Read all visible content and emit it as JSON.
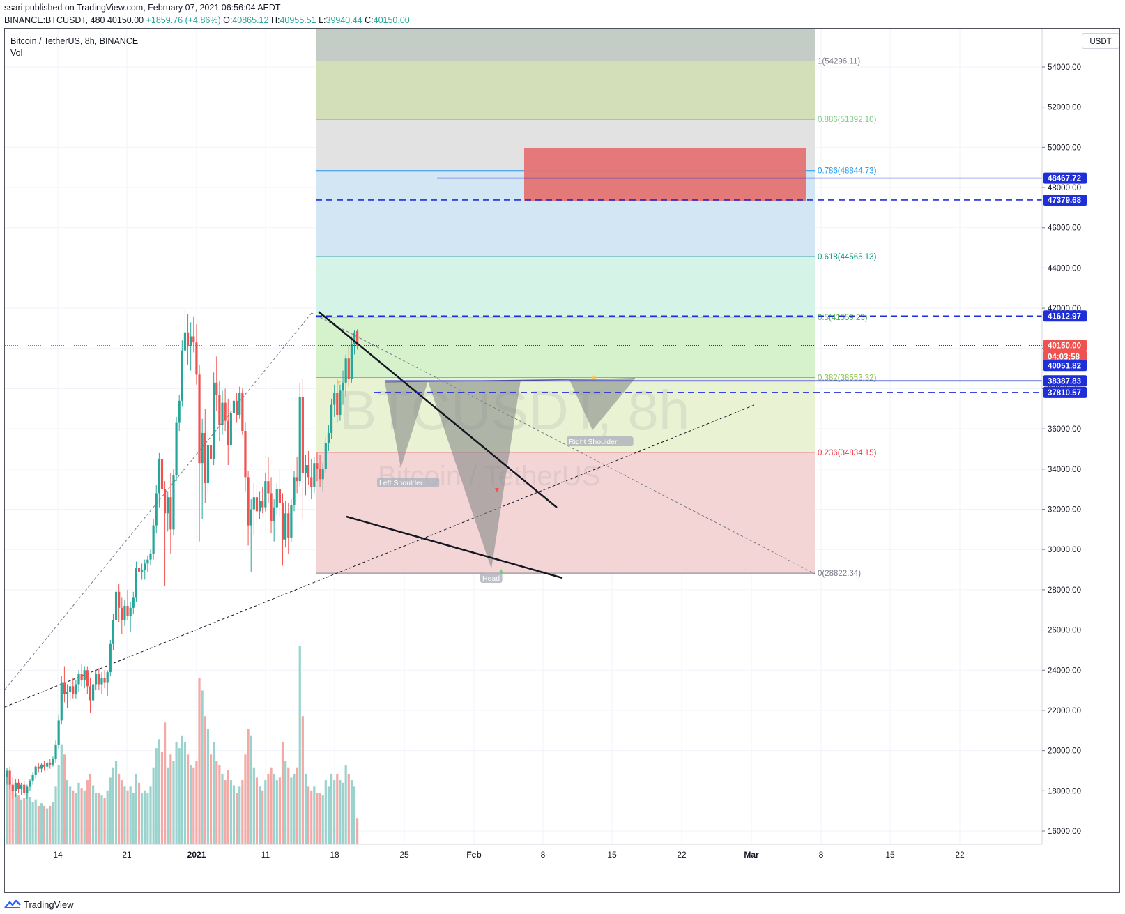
{
  "publish_info": "ssari published on TradingView.com, February 07, 2021 06:56:04 AEDT",
  "ohlc_bar": {
    "symbol_text": "BINANCE:BTCUSDT, 480",
    "last": "40150.00",
    "change": "+1859.76 (+4.86%)",
    "o_label": "O:",
    "o": "40865.12",
    "h_label": "H:",
    "h": "40955.51",
    "l_label": "L:",
    "l": "39940.44",
    "c_label": "C:",
    "c": "40150.00"
  },
  "legend": {
    "title": "Bitcoin / TetherUS, 8h, BINANCE",
    "vol": "Vol"
  },
  "currency_button": "USDT",
  "watermark": {
    "line1": "BTCUSDT, 8h",
    "line2": "Bitcoin / TetherUS"
  },
  "footer": {
    "brand": "TradingView"
  },
  "colors": {
    "up": "#26a69a",
    "down": "#ef5350",
    "vol_up": "#9ad3cd",
    "vol_down": "#f4a9a7",
    "level_blue": "#1e2ed8",
    "last_price": "#ef5350"
  },
  "chart_data": {
    "type": "candlestick",
    "y_axis_ticks": [
      "16000.00",
      "18000.00",
      "20000.00",
      "22000.00",
      "24000.00",
      "26000.00",
      "28000.00",
      "30000.00",
      "32000.00",
      "34000.00",
      "36000.00",
      "38000.00",
      "40000.00",
      "42000.00",
      "44000.00",
      "46000.00",
      "48000.00",
      "50000.00",
      "52000.00",
      "54000.00"
    ],
    "x_axis_ticks": [
      "14",
      "21",
      "2021",
      "11",
      "18",
      "25",
      "Feb",
      "8",
      "15",
      "22",
      "Mar",
      "8",
      "15",
      "22"
    ],
    "ylim": [
      15600,
      56800
    ],
    "fib_levels": [
      {
        "ratio": 1,
        "label": "1(54296.11)",
        "value": 54296.11,
        "color": "#787b86"
      },
      {
        "ratio": 0.886,
        "label": "0.886(51392.10)",
        "value": 51392.1,
        "color": "#81c784"
      },
      {
        "ratio": 0.786,
        "label": "0.786(48844.73)",
        "value": 48844.73,
        "color": "#2196f3"
      },
      {
        "ratio": 0.618,
        "label": "0.618(44565.13)",
        "value": 44565.13,
        "color": "#089981"
      },
      {
        "ratio": 0.5,
        "label": "0.5(41559.23)",
        "value": 41559.23,
        "color": "#4caf50"
      },
      {
        "ratio": 0.382,
        "label": "0.382(38553.32)",
        "value": 38553.32,
        "color": "#8bc34a"
      },
      {
        "ratio": 0.236,
        "label": "0.236(34834.15)",
        "value": 34834.15,
        "color": "#f23645"
      },
      {
        "ratio": 0,
        "label": "0(28822.34)",
        "value": 28822.34,
        "color": "#787b86"
      }
    ],
    "price_labels": [
      {
        "label": "48467.72",
        "value": 48467.72,
        "kind": "level"
      },
      {
        "label": "47379.68",
        "value": 47379.68,
        "kind": "level"
      },
      {
        "label": "41612.97",
        "value": 41612.97,
        "kind": "level"
      },
      {
        "label": "40150.00",
        "value": 40150.0,
        "kind": "last"
      },
      {
        "label": "04:03:58",
        "value": 39600,
        "kind": "countdown"
      },
      {
        "label": "40051.82",
        "value": 39150,
        "kind": "level"
      },
      {
        "label": "38387.83",
        "value": 38387.83,
        "kind": "level"
      },
      {
        "label": "37810.57",
        "value": 37810.57,
        "kind": "level"
      }
    ],
    "pattern_labels": [
      "Left Shoulder",
      "Head",
      "Right Shoulder"
    ],
    "candles": [
      {
        "o": 18700,
        "h": 19150,
        "l": 18300,
        "c": 19000,
        "v": 0.55
      },
      {
        "o": 19000,
        "h": 19200,
        "l": 18100,
        "c": 18300,
        "v": 0.48
      },
      {
        "o": 18300,
        "h": 18700,
        "l": 17600,
        "c": 18000,
        "v": 0.45
      },
      {
        "o": 18000,
        "h": 18600,
        "l": 17700,
        "c": 18400,
        "v": 0.4
      },
      {
        "o": 18400,
        "h": 18600,
        "l": 17900,
        "c": 18100,
        "v": 0.38
      },
      {
        "o": 18100,
        "h": 18400,
        "l": 17800,
        "c": 18300,
        "v": 0.35
      },
      {
        "o": 18300,
        "h": 18500,
        "l": 17800,
        "c": 17900,
        "v": 0.36
      },
      {
        "o": 17900,
        "h": 18300,
        "l": 17600,
        "c": 18200,
        "v": 0.4
      },
      {
        "o": 18200,
        "h": 18600,
        "l": 18000,
        "c": 18500,
        "v": 0.37
      },
      {
        "o": 18500,
        "h": 18900,
        "l": 18300,
        "c": 18800,
        "v": 0.33
      },
      {
        "o": 18800,
        "h": 19300,
        "l": 18600,
        "c": 19200,
        "v": 0.35
      },
      {
        "o": 19200,
        "h": 19400,
        "l": 18900,
        "c": 19100,
        "v": 0.3
      },
      {
        "o": 19100,
        "h": 19400,
        "l": 18900,
        "c": 19300,
        "v": 0.32
      },
      {
        "o": 19300,
        "h": 19500,
        "l": 19000,
        "c": 19200,
        "v": 0.3
      },
      {
        "o": 19200,
        "h": 19500,
        "l": 19000,
        "c": 19400,
        "v": 0.28
      },
      {
        "o": 19400,
        "h": 19600,
        "l": 19100,
        "c": 19300,
        "v": 0.3
      },
      {
        "o": 19300,
        "h": 19700,
        "l": 19200,
        "c": 19600,
        "v": 0.33
      },
      {
        "o": 19600,
        "h": 20500,
        "l": 19400,
        "c": 20300,
        "v": 0.45
      },
      {
        "o": 20300,
        "h": 21800,
        "l": 20100,
        "c": 21500,
        "v": 0.62
      },
      {
        "o": 21500,
        "h": 23700,
        "l": 21300,
        "c": 23400,
        "v": 0.78
      },
      {
        "o": 23400,
        "h": 24200,
        "l": 22400,
        "c": 22800,
        "v": 0.7
      },
      {
        "o": 22800,
        "h": 23300,
        "l": 22100,
        "c": 22900,
        "v": 0.5
      },
      {
        "o": 22900,
        "h": 23500,
        "l": 22500,
        "c": 23200,
        "v": 0.45
      },
      {
        "o": 23200,
        "h": 23600,
        "l": 22600,
        "c": 22800,
        "v": 0.42
      },
      {
        "o": 22800,
        "h": 23500,
        "l": 22600,
        "c": 23300,
        "v": 0.4
      },
      {
        "o": 23300,
        "h": 24000,
        "l": 22900,
        "c": 23800,
        "v": 0.48
      },
      {
        "o": 23800,
        "h": 24300,
        "l": 23200,
        "c": 23500,
        "v": 0.44
      },
      {
        "o": 23500,
        "h": 24200,
        "l": 23100,
        "c": 24000,
        "v": 0.42
      },
      {
        "o": 24000,
        "h": 24200,
        "l": 22800,
        "c": 23200,
        "v": 0.5
      },
      {
        "o": 23200,
        "h": 23600,
        "l": 21900,
        "c": 22500,
        "v": 0.55
      },
      {
        "o": 22500,
        "h": 23500,
        "l": 22200,
        "c": 23300,
        "v": 0.46
      },
      {
        "o": 23300,
        "h": 24000,
        "l": 23000,
        "c": 23800,
        "v": 0.4
      },
      {
        "o": 23800,
        "h": 24100,
        "l": 23000,
        "c": 23300,
        "v": 0.4
      },
      {
        "o": 23300,
        "h": 23900,
        "l": 22800,
        "c": 23600,
        "v": 0.38
      },
      {
        "o": 23600,
        "h": 24000,
        "l": 23100,
        "c": 23400,
        "v": 0.36
      },
      {
        "o": 23400,
        "h": 24000,
        "l": 22700,
        "c": 23900,
        "v": 0.42
      },
      {
        "o": 23900,
        "h": 25500,
        "l": 23700,
        "c": 25300,
        "v": 0.52
      },
      {
        "o": 25300,
        "h": 26800,
        "l": 25000,
        "c": 26500,
        "v": 0.6
      },
      {
        "o": 26500,
        "h": 28400,
        "l": 26300,
        "c": 27900,
        "v": 0.65
      },
      {
        "o": 27900,
        "h": 28300,
        "l": 26400,
        "c": 27100,
        "v": 0.55
      },
      {
        "o": 27100,
        "h": 27600,
        "l": 25800,
        "c": 26500,
        "v": 0.5
      },
      {
        "o": 26500,
        "h": 27500,
        "l": 26200,
        "c": 27200,
        "v": 0.45
      },
      {
        "o": 27200,
        "h": 28000,
        "l": 26500,
        "c": 26700,
        "v": 0.42
      },
      {
        "o": 26700,
        "h": 27400,
        "l": 25900,
        "c": 27100,
        "v": 0.45
      },
      {
        "o": 27100,
        "h": 27900,
        "l": 26800,
        "c": 27600,
        "v": 0.4
      },
      {
        "o": 27600,
        "h": 29400,
        "l": 27400,
        "c": 29100,
        "v": 0.55
      },
      {
        "o": 29100,
        "h": 29600,
        "l": 28300,
        "c": 28900,
        "v": 0.48
      },
      {
        "o": 28900,
        "h": 29300,
        "l": 28500,
        "c": 29000,
        "v": 0.4
      },
      {
        "o": 29000,
        "h": 29500,
        "l": 28500,
        "c": 29300,
        "v": 0.42
      },
      {
        "o": 29300,
        "h": 29700,
        "l": 28900,
        "c": 29500,
        "v": 0.4
      },
      {
        "o": 29500,
        "h": 30000,
        "l": 29200,
        "c": 29800,
        "v": 0.45
      },
      {
        "o": 29800,
        "h": 31500,
        "l": 29500,
        "c": 31200,
        "v": 0.6
      },
      {
        "o": 31200,
        "h": 33200,
        "l": 30800,
        "c": 32800,
        "v": 0.75
      },
      {
        "o": 32800,
        "h": 34800,
        "l": 32100,
        "c": 34500,
        "v": 0.82
      },
      {
        "o": 34500,
        "h": 34700,
        "l": 32300,
        "c": 33000,
        "v": 0.72
      },
      {
        "o": 33000,
        "h": 33400,
        "l": 28200,
        "c": 31800,
        "v": 0.95
      },
      {
        "o": 31800,
        "h": 32900,
        "l": 30900,
        "c": 32600,
        "v": 0.6
      },
      {
        "o": 32600,
        "h": 33800,
        "l": 29800,
        "c": 31000,
        "v": 0.7
      },
      {
        "o": 31000,
        "h": 34000,
        "l": 30700,
        "c": 33700,
        "v": 0.65
      },
      {
        "o": 33700,
        "h": 36600,
        "l": 33400,
        "c": 36300,
        "v": 0.8
      },
      {
        "o": 36300,
        "h": 37700,
        "l": 35900,
        "c": 37400,
        "v": 0.75
      },
      {
        "o": 37400,
        "h": 40400,
        "l": 37100,
        "c": 39900,
        "v": 0.85
      },
      {
        "o": 39900,
        "h": 41900,
        "l": 38400,
        "c": 40800,
        "v": 0.8
      },
      {
        "o": 40800,
        "h": 41700,
        "l": 39200,
        "c": 40100,
        "v": 0.7
      },
      {
        "o": 40100,
        "h": 41300,
        "l": 38900,
        "c": 40600,
        "v": 0.62
      },
      {
        "o": 40600,
        "h": 41600,
        "l": 39800,
        "c": 40300,
        "v": 0.6
      },
      {
        "o": 40300,
        "h": 41200,
        "l": 38200,
        "c": 38700,
        "v": 0.65
      },
      {
        "o": 38700,
        "h": 39200,
        "l": 30400,
        "c": 34300,
        "v": 1.3
      },
      {
        "o": 34300,
        "h": 36500,
        "l": 31500,
        "c": 35800,
        "v": 1.2
      },
      {
        "o": 35800,
        "h": 37000,
        "l": 32300,
        "c": 33300,
        "v": 1.0
      },
      {
        "o": 33300,
        "h": 35900,
        "l": 32800,
        "c": 35200,
        "v": 0.9
      },
      {
        "o": 35200,
        "h": 36300,
        "l": 33800,
        "c": 34500,
        "v": 0.7
      },
      {
        "o": 34500,
        "h": 38800,
        "l": 34200,
        "c": 38300,
        "v": 0.8
      },
      {
        "o": 38300,
        "h": 39600,
        "l": 36900,
        "c": 37700,
        "v": 0.65
      },
      {
        "o": 37700,
        "h": 38400,
        "l": 35400,
        "c": 36200,
        "v": 0.62
      },
      {
        "o": 36200,
        "h": 37900,
        "l": 35700,
        "c": 37300,
        "v": 0.55
      },
      {
        "o": 37300,
        "h": 38000,
        "l": 35900,
        "c": 36400,
        "v": 0.5
      },
      {
        "o": 36400,
        "h": 37500,
        "l": 34200,
        "c": 35200,
        "v": 0.58
      },
      {
        "o": 35200,
        "h": 37300,
        "l": 35000,
        "c": 36800,
        "v": 0.5
      },
      {
        "o": 36800,
        "h": 38200,
        "l": 36400,
        "c": 37400,
        "v": 0.46
      },
      {
        "o": 37400,
        "h": 37800,
        "l": 36300,
        "c": 36700,
        "v": 0.4
      },
      {
        "o": 36700,
        "h": 38100,
        "l": 36500,
        "c": 37800,
        "v": 0.45
      },
      {
        "o": 37800,
        "h": 38000,
        "l": 35700,
        "c": 35900,
        "v": 0.5
      },
      {
        "o": 35900,
        "h": 36300,
        "l": 32900,
        "c": 33600,
        "v": 0.7
      },
      {
        "o": 33600,
        "h": 33900,
        "l": 30200,
        "c": 31200,
        "v": 0.9
      },
      {
        "o": 31200,
        "h": 32500,
        "l": 28900,
        "c": 32000,
        "v": 0.85
      },
      {
        "o": 32000,
        "h": 33300,
        "l": 30700,
        "c": 32600,
        "v": 0.6
      },
      {
        "o": 32600,
        "h": 33200,
        "l": 31300,
        "c": 31900,
        "v": 0.52
      },
      {
        "o": 31900,
        "h": 32900,
        "l": 31500,
        "c": 32400,
        "v": 0.45
      },
      {
        "o": 32400,
        "h": 33100,
        "l": 31800,
        "c": 32100,
        "v": 0.42
      },
      {
        "o": 32100,
        "h": 33800,
        "l": 31900,
        "c": 33400,
        "v": 0.5
      },
      {
        "o": 33400,
        "h": 34600,
        "l": 32300,
        "c": 32800,
        "v": 0.55
      },
      {
        "o": 32800,
        "h": 33600,
        "l": 30800,
        "c": 31400,
        "v": 0.6
      },
      {
        "o": 31400,
        "h": 32500,
        "l": 30400,
        "c": 32100,
        "v": 0.55
      },
      {
        "o": 32100,
        "h": 33300,
        "l": 31700,
        "c": 33000,
        "v": 0.5
      },
      {
        "o": 33000,
        "h": 34000,
        "l": 31600,
        "c": 32300,
        "v": 0.52
      },
      {
        "o": 32300,
        "h": 32800,
        "l": 29200,
        "c": 30500,
        "v": 0.8
      },
      {
        "o": 30500,
        "h": 32400,
        "l": 30100,
        "c": 31800,
        "v": 0.65
      },
      {
        "o": 31800,
        "h": 32300,
        "l": 29800,
        "c": 30600,
        "v": 0.6
      },
      {
        "o": 30600,
        "h": 32500,
        "l": 30400,
        "c": 32200,
        "v": 0.52
      },
      {
        "o": 32200,
        "h": 33900,
        "l": 31900,
        "c": 33600,
        "v": 0.55
      },
      {
        "o": 33600,
        "h": 34600,
        "l": 32800,
        "c": 33400,
        "v": 0.6
      },
      {
        "o": 33400,
        "h": 38300,
        "l": 33100,
        "c": 37600,
        "v": 1.55
      },
      {
        "o": 37600,
        "h": 38500,
        "l": 31500,
        "c": 33800,
        "v": 1.0
      },
      {
        "o": 33800,
        "h": 34700,
        "l": 32700,
        "c": 34200,
        "v": 0.55
      },
      {
        "o": 34200,
        "h": 34900,
        "l": 33200,
        "c": 33600,
        "v": 0.45
      },
      {
        "o": 33600,
        "h": 34500,
        "l": 32500,
        "c": 33100,
        "v": 0.42
      },
      {
        "o": 33100,
        "h": 34600,
        "l": 32800,
        "c": 34300,
        "v": 0.45
      },
      {
        "o": 34300,
        "h": 34800,
        "l": 33400,
        "c": 34000,
        "v": 0.4
      },
      {
        "o": 34000,
        "h": 34700,
        "l": 33100,
        "c": 33500,
        "v": 0.4
      },
      {
        "o": 33500,
        "h": 34300,
        "l": 32900,
        "c": 34000,
        "v": 0.38
      },
      {
        "o": 34000,
        "h": 35600,
        "l": 33800,
        "c": 35300,
        "v": 0.5
      },
      {
        "o": 35300,
        "h": 36200,
        "l": 34900,
        "c": 35800,
        "v": 0.45
      },
      {
        "o": 35800,
        "h": 37500,
        "l": 35500,
        "c": 37200,
        "v": 0.55
      },
      {
        "o": 37200,
        "h": 38200,
        "l": 36600,
        "c": 37800,
        "v": 0.5
      },
      {
        "o": 37800,
        "h": 38500,
        "l": 36300,
        "c": 36700,
        "v": 0.55
      },
      {
        "o": 36700,
        "h": 38200,
        "l": 36400,
        "c": 37900,
        "v": 0.5
      },
      {
        "o": 37900,
        "h": 38900,
        "l": 37200,
        "c": 38300,
        "v": 0.48
      },
      {
        "o": 38300,
        "h": 39700,
        "l": 37600,
        "c": 39500,
        "v": 0.62
      },
      {
        "o": 39500,
        "h": 40100,
        "l": 38100,
        "c": 38500,
        "v": 0.55
      },
      {
        "o": 38500,
        "h": 40600,
        "l": 38300,
        "c": 40200,
        "v": 0.5
      },
      {
        "o": 40200,
        "h": 40900,
        "l": 39700,
        "c": 40800,
        "v": 0.45
      },
      {
        "o": 40865,
        "h": 40955,
        "l": 39940,
        "c": 40150,
        "v": 0.2
      }
    ]
  }
}
